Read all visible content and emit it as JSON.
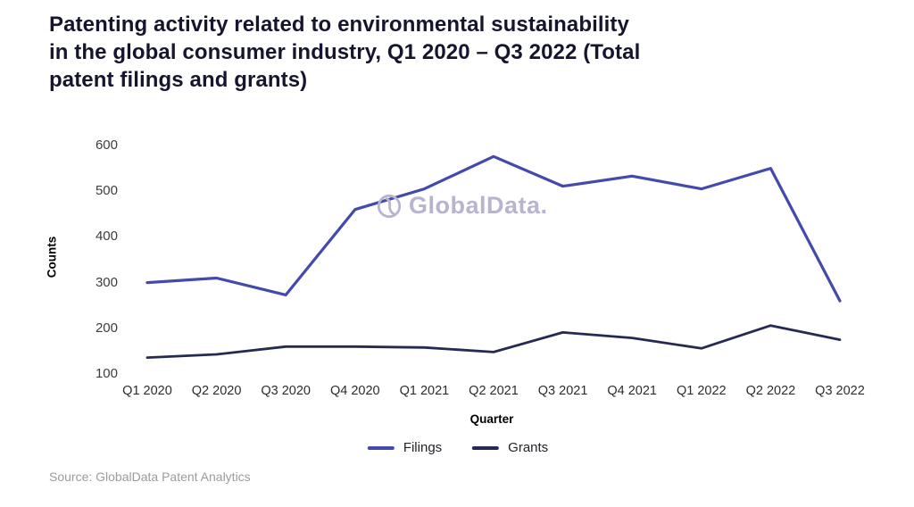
{
  "title": "Patenting activity related to environmental sustainability\nin the global consumer industry, Q1 2020 – Q3 2022 (Total\npatent filings and grants)",
  "source": "Source: GlobalData Patent Analytics",
  "watermark": {
    "text": "GlobalData."
  },
  "chart_data": {
    "type": "line",
    "title": "Patenting activity related to environmental sustainability in the global consumer industry, Q1 2020 – Q3 2022 (Total patent filings and grants)",
    "categories": [
      "Q1 2020",
      "Q2 2020",
      "Q3 2020",
      "Q4 2020",
      "Q1 2021",
      "Q2 2021",
      "Q3 2021",
      "Q4 2021",
      "Q1 2022",
      "Q2 2022",
      "Q3 2022"
    ],
    "series": [
      {
        "name": "Filings",
        "color": "#4349ad",
        "values": [
          300,
          310,
          273,
          460,
          505,
          576,
          511,
          533,
          505,
          550,
          260
        ]
      },
      {
        "name": "Grants",
        "color": "#262a52",
        "values": [
          136,
          143,
          160,
          160,
          158,
          148,
          191,
          179,
          156,
          206,
          175
        ]
      }
    ],
    "xlabel": "Quarter",
    "ylabel": "Counts",
    "yticks": [
      600,
      500,
      400,
      300,
      200,
      100
    ],
    "ylim": [
      100,
      600
    ],
    "grid": false,
    "axis_lines": false,
    "legend_position": "bottom"
  }
}
